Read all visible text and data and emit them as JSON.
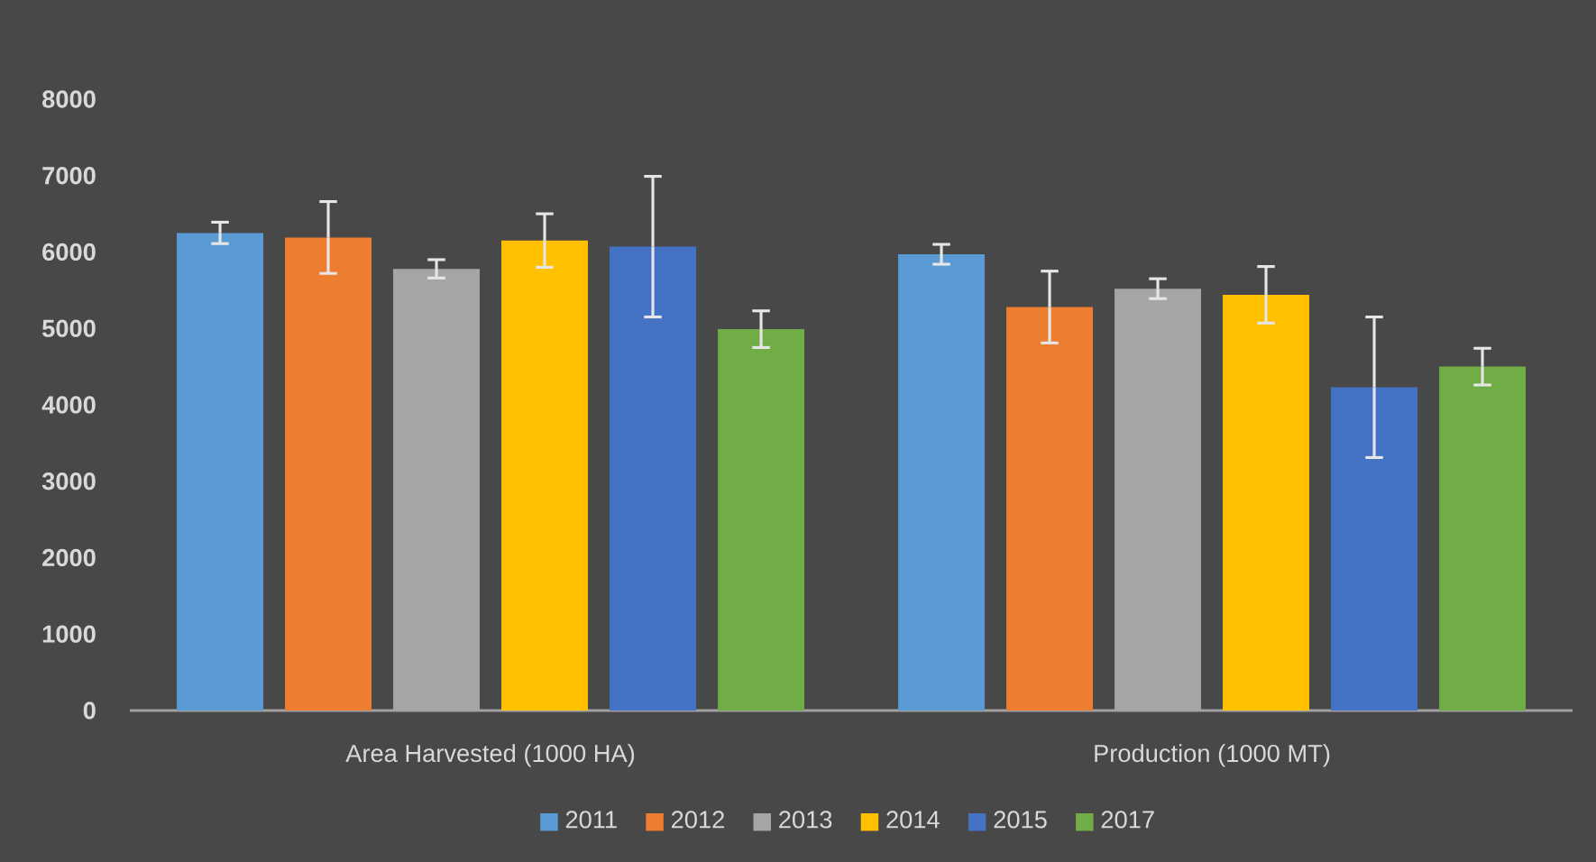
{
  "chart_data": {
    "type": "bar",
    "categories": [
      "Area Harvested (1000 HA)",
      "Production (1000 MT)"
    ],
    "series": [
      {
        "name": "2011",
        "color": "#5b9bd5",
        "values": [
          6250,
          5970
        ],
        "errors": [
          140,
          130
        ]
      },
      {
        "name": "2012",
        "color": "#ed7d31",
        "values": [
          6190,
          5280
        ],
        "errors": [
          470,
          470
        ]
      },
      {
        "name": "2013",
        "color": "#a5a5a5",
        "values": [
          5780,
          5520
        ],
        "errors": [
          120,
          130
        ]
      },
      {
        "name": "2014",
        "color": "#ffc000",
        "values": [
          6150,
          5440
        ],
        "errors": [
          350,
          370
        ]
      },
      {
        "name": "2015",
        "color": "#4472c4",
        "values": [
          6070,
          4230
        ],
        "errors": [
          920,
          920
        ]
      },
      {
        "name": "2017",
        "color": "#70ad47",
        "values": [
          4990,
          4500
        ],
        "errors": [
          240,
          240
        ]
      }
    ],
    "ylim": [
      0,
      8000
    ],
    "yticks": [
      0,
      1000,
      2000,
      3000,
      4000,
      5000,
      6000,
      7000,
      8000
    ],
    "grid": false,
    "legend": "bottom"
  }
}
